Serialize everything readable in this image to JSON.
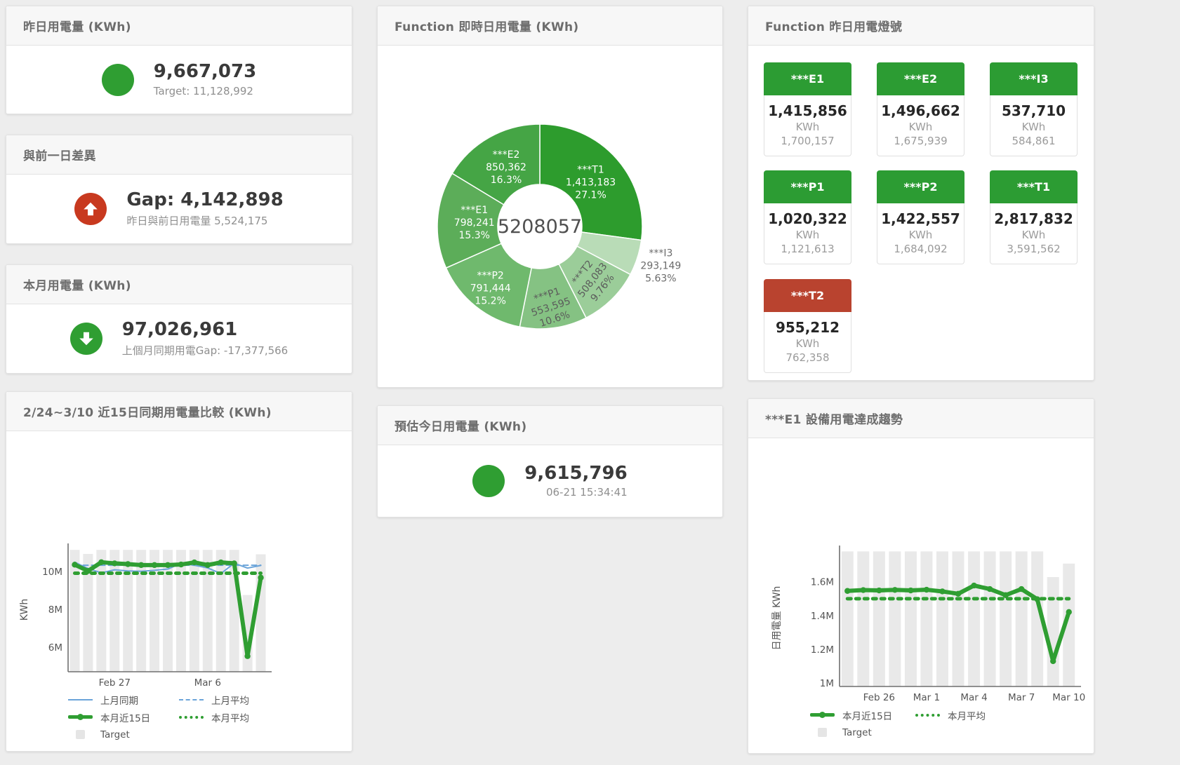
{
  "colors": {
    "green": "#2f9e32",
    "red_circle": "#c8391f",
    "tile_green": "#2c9c33",
    "tile_red": "#b9432f",
    "blue_line": "#6ba4d9",
    "bar_gray": "#e9e9e9",
    "axis": "#6f6f6f",
    "tick_text": "#555555"
  },
  "stat_panels": [
    {
      "title": "昨日用電量 (KWh)",
      "indicator": "circle",
      "indicator_color": "#2f9e32",
      "value": "9,667,073",
      "subtitle": "Target: 11,128,992"
    },
    {
      "title": "與前一日差異",
      "indicator": "arrow-up",
      "indicator_color": "#c8391f",
      "value": "Gap: 4,142,898",
      "subtitle": "昨日與前日用電量 5,524,175"
    },
    {
      "title": "本月用電量 (KWh)",
      "indicator": "arrow-down",
      "indicator_color": "#2f9e32",
      "value": "97,026,961",
      "subtitle": "上個月同期用電Gap: -17,377,566"
    },
    {
      "title": "預估今日用電量 (KWh)",
      "indicator": "circle",
      "indicator_color": "#2f9e32",
      "value": "9,615,796",
      "subtitle": "06-21 15:34:41"
    }
  ],
  "donut_panel": {
    "title": "Function 即時日用電量 (KWh)",
    "chart_data": {
      "type": "pie",
      "center_label": "5208057",
      "slices": [
        {
          "name": "***T1",
          "value_label": "1,413,183",
          "pct_label": "27.1%",
          "pct": 27.1,
          "color": "#2d9c2d",
          "text": "#ffffff",
          "labelR": 0.66,
          "rotate": 0,
          "outside": false
        },
        {
          "name": "***I3",
          "value_label": "293,149",
          "pct_label": "5.63%",
          "pct": 5.63,
          "color": "#b9dcb7",
          "text": "#6b6b6b",
          "labelR": 1.24,
          "rotate": 0,
          "outside": true
        },
        {
          "name": "***T2",
          "value_label": "508,083",
          "pct_label": "9.76%",
          "pct": 9.76,
          "color": "#9bcd99",
          "text": "#5b5b5b",
          "labelR": 0.73,
          "rotate": -52,
          "outside": false
        },
        {
          "name": "***P1",
          "value_label": "553,595",
          "pct_label": "10.6%",
          "pct": 10.6,
          "color": "#85c283",
          "text": "#5b5b5b",
          "labelR": 0.79,
          "rotate": -18,
          "outside": false
        },
        {
          "name": "***P2",
          "value_label": "791,444",
          "pct_label": "15.2%",
          "pct": 15.2,
          "color": "#6fb96d",
          "text": "#ffffff",
          "labelR": 0.77,
          "rotate": 0,
          "outside": false
        },
        {
          "name": "***E1",
          "value_label": "798,241",
          "pct_label": "15.3%",
          "pct": 15.3,
          "color": "#5cad59",
          "text": "#ffffff",
          "labelR": 0.64,
          "rotate": 0,
          "outside": false
        },
        {
          "name": "***E2",
          "value_label": "850,362",
          "pct_label": "16.3%",
          "pct": 16.3,
          "color": "#45a545",
          "text": "#ffffff",
          "labelR": 0.67,
          "rotate": 0,
          "outside": false
        }
      ]
    }
  },
  "lights_panel": {
    "title": "Function 昨日用電燈號",
    "unit": "KWh",
    "tiles": [
      {
        "name": "***E1",
        "value": "1,415,856",
        "target": "1,700,157",
        "status": "green"
      },
      {
        "name": "***E2",
        "value": "1,496,662",
        "target": "1,675,939",
        "status": "green"
      },
      {
        "name": "***I3",
        "value": "537,710",
        "target": "584,861",
        "status": "green"
      },
      {
        "name": "***P1",
        "value": "1,020,322",
        "target": "1,121,613",
        "status": "green"
      },
      {
        "name": "***P2",
        "value": "1,422,557",
        "target": "1,684,092",
        "status": "green"
      },
      {
        "name": "***T1",
        "value": "2,817,832",
        "target": "3,591,562",
        "status": "green"
      },
      {
        "name": "***T2",
        "value": "955,212",
        "target": "762,358",
        "status": "red"
      }
    ]
  },
  "compare_panel": {
    "title": "2/24~3/10 近15日同期用電量比較 (KWh)",
    "chart_data": {
      "type": "line+bar",
      "n": 15,
      "ylabel": "KWh",
      "ylim": [
        4700000,
        11250000
      ],
      "y_ticks": [
        {
          "value": 6000000,
          "label": "6M"
        },
        {
          "value": 8000000,
          "label": "8M"
        },
        {
          "value": 10000000,
          "label": "10M"
        }
      ],
      "x_ticks": [
        {
          "index": 3,
          "label": "Feb 27"
        },
        {
          "index": 10,
          "label": "Mar 6"
        }
      ],
      "target": {
        "name": "Target",
        "color": "#e9e9e9",
        "values": [
          11130000,
          10920000,
          11130000,
          11130000,
          11130000,
          11130000,
          11130000,
          11130000,
          11130000,
          11130000,
          11130000,
          11130000,
          11130000,
          8750000,
          10900000
        ]
      },
      "series": [
        {
          "name": "上月同期",
          "style": "thin",
          "color": "#6ba4d9",
          "values": [
            10480000,
            10150000,
            9920000,
            10080000,
            10020000,
            10000000,
            10050000,
            10120000,
            10420000,
            10320000,
            10180000,
            9880000,
            10430000,
            10170000,
            10310000
          ]
        },
        {
          "name": "上月平均",
          "style": "dashed",
          "color": "#6ba4d9",
          "const": 10320000
        },
        {
          "name": "本月近15日",
          "style": "thick",
          "color": "#2f9e32",
          "values": [
            10350000,
            10020000,
            10480000,
            10420000,
            10380000,
            10330000,
            10330000,
            10330000,
            10360000,
            10470000,
            10330000,
            10470000,
            10420000,
            5524175,
            9667073
          ]
        },
        {
          "name": "本月平均",
          "style": "dotted",
          "color": "#2f9e32",
          "const": 9900000
        }
      ],
      "legend": [
        {
          "label": "上月同期",
          "swatch": "thin"
        },
        {
          "label": "上月平均",
          "swatch": "dashed"
        },
        {
          "label": "本月近15日",
          "swatch": "thick"
        },
        {
          "label": "本月平均",
          "swatch": "dotted"
        },
        {
          "label": "Target",
          "swatch": "box"
        }
      ]
    }
  },
  "trend_panel": {
    "title": "***E1 設備用電達成趨勢",
    "chart_data": {
      "type": "line+bar",
      "n": 15,
      "ylabel": "日用電量 KWh",
      "ylim": [
        980000,
        1790000
      ],
      "y_ticks": [
        {
          "value": 1000000,
          "label": "1M"
        },
        {
          "value": 1200000,
          "label": "1.2M"
        },
        {
          "value": 1400000,
          "label": "1.4M"
        },
        {
          "value": 1600000,
          "label": "1.6M"
        }
      ],
      "x_ticks": [
        {
          "index": 2,
          "label": "Feb 26"
        },
        {
          "index": 5,
          "label": "Mar 1"
        },
        {
          "index": 8,
          "label": "Mar 4"
        },
        {
          "index": 11,
          "label": "Mar 7"
        },
        {
          "index": 14,
          "label": "Mar 10"
        }
      ],
      "target": {
        "name": "Target",
        "color": "#e9e9e9",
        "values": [
          1780000,
          1780000,
          1780000,
          1780000,
          1780000,
          1780000,
          1780000,
          1780000,
          1780000,
          1780000,
          1780000,
          1780000,
          1780000,
          1628000,
          1708000
        ]
      },
      "series": [
        {
          "name": "本月近15日",
          "style": "thick",
          "color": "#2f9e32",
          "values": [
            1546000,
            1551000,
            1549000,
            1552000,
            1549000,
            1553000,
            1543000,
            1529000,
            1578000,
            1557000,
            1521000,
            1557000,
            1497000,
            1130000,
            1421000
          ]
        },
        {
          "name": "本月平均",
          "style": "dotted",
          "color": "#2f9e32",
          "const": 1500000
        }
      ],
      "legend": [
        {
          "label": "本月近15日",
          "swatch": "thick"
        },
        {
          "label": "本月平均",
          "swatch": "dotted"
        },
        {
          "label": "Target",
          "swatch": "box"
        }
      ]
    }
  }
}
